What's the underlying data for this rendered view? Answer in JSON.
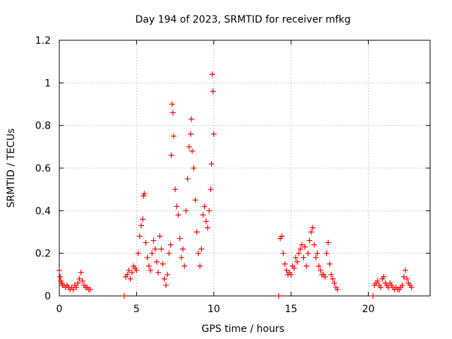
{
  "chart_data": {
    "type": "scatter",
    "title": "Day 194 of 2023, SRMTID for receiver mfkg",
    "xlabel": "GPS time / hours",
    "ylabel": "SRMTID / TECUs",
    "xlim": [
      0,
      24
    ],
    "ylim": [
      0,
      1.2
    ],
    "xticks": [
      0,
      5,
      10,
      15,
      20
    ],
    "yticks": [
      0,
      0.2,
      0.4,
      0.6,
      0.8,
      1,
      1.2
    ],
    "xtick_labels": [
      "0",
      "5",
      "10",
      "15",
      "20"
    ],
    "ytick_labels": [
      "0",
      "0.2",
      "0.4",
      "0.6",
      "0.8",
      "1",
      "1.2"
    ],
    "grid": true,
    "marker": "plus",
    "color": "#ff0000",
    "series": [
      {
        "name": "SRMTID",
        "x": [
          0.0,
          0.05,
          0.1,
          0.15,
          0.2,
          0.3,
          0.4,
          0.5,
          0.6,
          0.7,
          0.8,
          0.9,
          1.0,
          1.1,
          1.2,
          1.3,
          1.4,
          1.5,
          1.6,
          1.7,
          1.8,
          1.9,
          2.0,
          4.2,
          4.3,
          4.4,
          4.5,
          4.6,
          4.7,
          4.8,
          4.9,
          5.0,
          5.1,
          5.2,
          5.3,
          5.4,
          5.45,
          5.5,
          5.6,
          5.7,
          5.8,
          5.9,
          6.0,
          6.1,
          6.2,
          6.3,
          6.4,
          6.5,
          6.6,
          6.7,
          6.8,
          6.9,
          7.0,
          7.1,
          7.2,
          7.25,
          7.3,
          7.35,
          7.4,
          7.5,
          7.6,
          7.7,
          7.8,
          7.9,
          8.0,
          8.1,
          8.2,
          8.3,
          8.4,
          8.5,
          8.55,
          8.6,
          8.7,
          8.8,
          8.9,
          9.0,
          9.1,
          9.2,
          9.3,
          9.4,
          9.5,
          9.6,
          9.7,
          9.8,
          9.85,
          9.9,
          9.95,
          10.0,
          14.2,
          14.3,
          14.4,
          14.5,
          14.6,
          14.7,
          14.8,
          14.9,
          15.0,
          15.1,
          15.2,
          15.3,
          15.4,
          15.5,
          15.6,
          15.7,
          15.8,
          15.9,
          16.0,
          16.1,
          16.2,
          16.3,
          16.4,
          16.5,
          16.6,
          16.7,
          16.8,
          16.9,
          17.0,
          17.1,
          17.2,
          17.3,
          17.4,
          17.5,
          17.6,
          17.7,
          17.8,
          17.9,
          18.0,
          20.3,
          20.4,
          20.5,
          20.6,
          20.7,
          20.8,
          20.9,
          21.0,
          21.1,
          21.2,
          21.3,
          21.4,
          21.5,
          21.6,
          21.7,
          21.8,
          21.9,
          22.0,
          22.1,
          22.2,
          22.3,
          22.4,
          22.5,
          22.6,
          22.7,
          22.8
        ],
        "y": [
          0.12,
          0.09,
          0.07,
          0.06,
          0.05,
          0.05,
          0.04,
          0.05,
          0.04,
          0.03,
          0.04,
          0.03,
          0.05,
          0.04,
          0.06,
          0.08,
          0.11,
          0.07,
          0.05,
          0.04,
          0.04,
          0.03,
          0.03,
          0.0,
          0.09,
          0.1,
          0.12,
          0.08,
          0.11,
          0.14,
          0.13,
          0.12,
          0.2,
          0.28,
          0.33,
          0.36,
          0.47,
          0.48,
          0.25,
          0.18,
          0.14,
          0.12,
          0.2,
          0.26,
          0.22,
          0.16,
          0.11,
          0.28,
          0.22,
          0.15,
          0.08,
          0.05,
          0.1,
          0.2,
          0.24,
          0.66,
          0.9,
          0.86,
          0.75,
          0.5,
          0.42,
          0.38,
          0.27,
          0.18,
          0.22,
          0.14,
          0.4,
          0.55,
          0.7,
          0.76,
          0.83,
          0.68,
          0.6,
          0.45,
          0.3,
          0.2,
          0.14,
          0.22,
          0.38,
          0.42,
          0.35,
          0.32,
          0.4,
          0.5,
          0.62,
          1.04,
          0.96,
          0.76,
          0.0,
          0.27,
          0.28,
          0.2,
          0.15,
          0.12,
          0.1,
          0.11,
          0.1,
          0.14,
          0.13,
          0.18,
          0.16,
          0.2,
          0.22,
          0.24,
          0.18,
          0.23,
          0.14,
          0.2,
          0.26,
          0.3,
          0.32,
          0.24,
          0.18,
          0.2,
          0.14,
          0.12,
          0.1,
          0.1,
          0.09,
          0.2,
          0.25,
          0.15,
          0.1,
          0.08,
          0.06,
          0.04,
          0.03,
          0.0,
          0.05,
          0.06,
          0.07,
          0.05,
          0.04,
          0.08,
          0.09,
          0.06,
          0.05,
          0.04,
          0.06,
          0.05,
          0.04,
          0.03,
          0.04,
          0.03,
          0.03,
          0.04,
          0.05,
          0.09,
          0.12,
          0.08,
          0.06,
          0.05,
          0.04
        ]
      }
    ]
  }
}
